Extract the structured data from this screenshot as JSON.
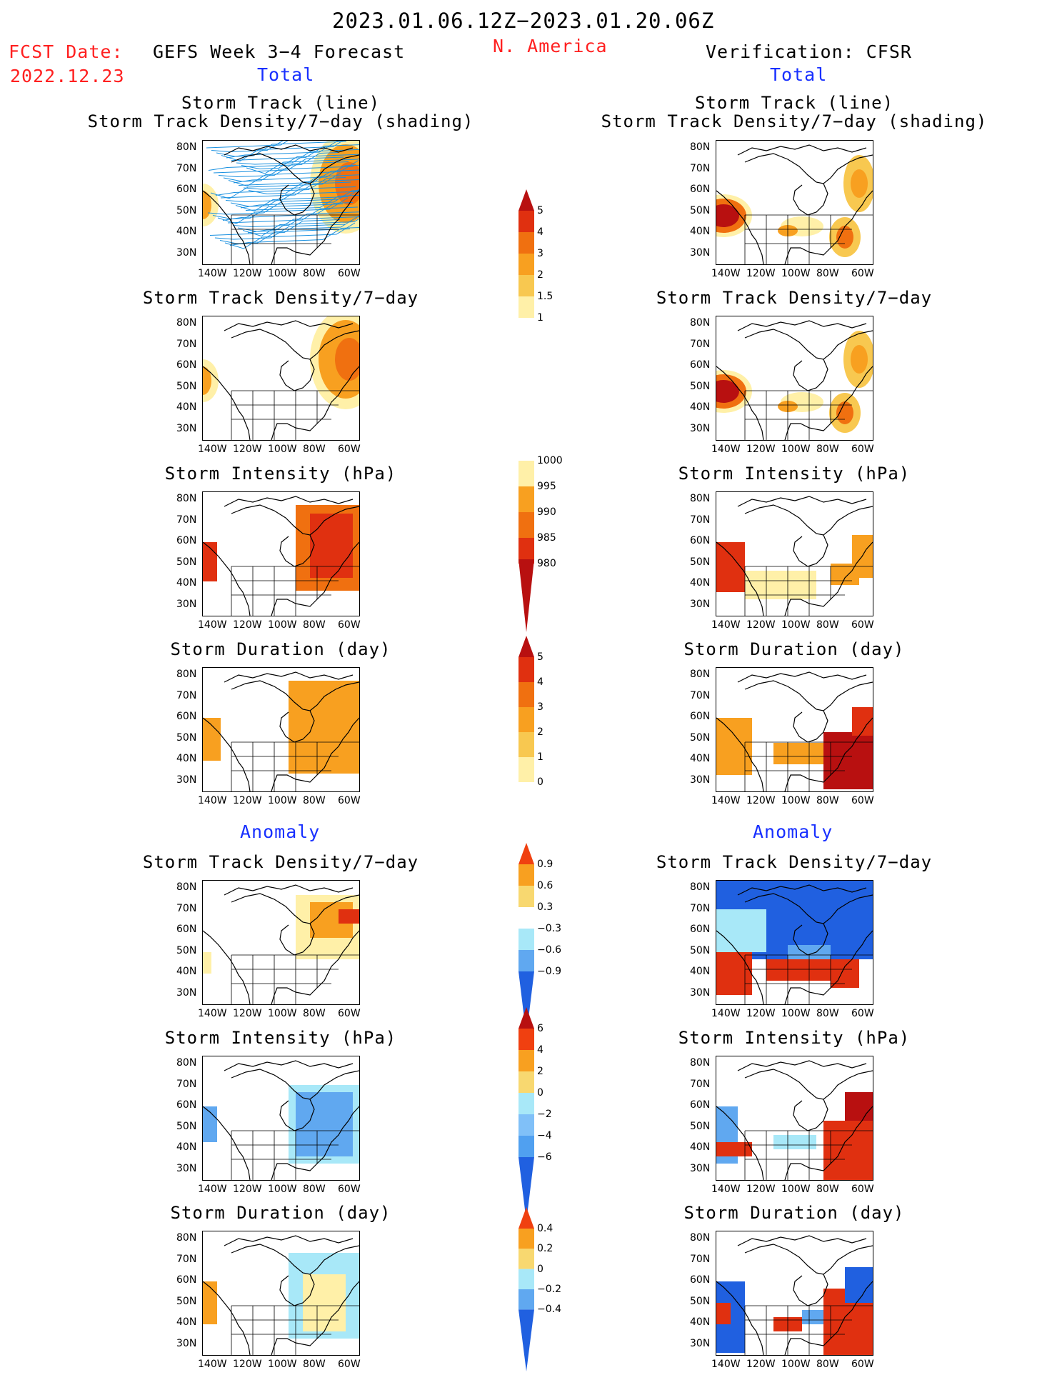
{
  "header": {
    "period": "2023.01.06.12Z−2023.01.20.06Z",
    "fcst_label": "FCST Date:",
    "fcst_date": "2022.12.23",
    "region": "N. America",
    "left_title": "GEFS Week 3−4 Forecast",
    "right_title": "Verification: CFSR",
    "total_label": "Total",
    "anomaly_label": "Anomaly"
  },
  "panel_titles": {
    "track_line": "Storm Track (line)",
    "track_density_shading": "Storm Track Density/7−day (shading)",
    "track_density": "Storm Track Density/7−day",
    "intensity": "Storm Intensity (hPa)",
    "duration": "Storm Duration (day)"
  },
  "map_axes": {
    "lat_ticks": [
      "80N",
      "70N",
      "60N",
      "50N",
      "40N",
      "30N"
    ],
    "lon_ticks": [
      "140W",
      "120W",
      "100W",
      "80W",
      "60W"
    ]
  },
  "colorbars": [
    {
      "id": "density_total",
      "labels": [
        "5",
        "4",
        "3",
        "2",
        "1.5",
        "1"
      ],
      "colors": [
        "#b81010",
        "#e03010",
        "#f07010",
        "#f8a020",
        "#f8c850",
        "#fff0a8"
      ],
      "ends": "top"
    },
    {
      "id": "intensity_total",
      "labels": [
        "1000",
        "995",
        "990",
        "985",
        "980"
      ],
      "colors": [
        "#fff0a8",
        "#f8a020",
        "#f07010",
        "#e03010",
        "#b81010"
      ],
      "ends": "bottom"
    },
    {
      "id": "duration_total",
      "labels": [
        "5",
        "4",
        "3",
        "2",
        "1",
        "0"
      ],
      "colors": [
        "#b81010",
        "#e03010",
        "#f07010",
        "#f8a020",
        "#f8c850",
        "#fff0a8"
      ],
      "ends": "top"
    },
    {
      "id": "density_anom",
      "labels": [
        "0.9",
        "0.6",
        "0.3",
        "−0.3",
        "−0.6",
        "−0.9"
      ],
      "colors": [
        "#f04010",
        "#f8a020",
        "#f8d870",
        "#ffffff",
        "#a8e8f8",
        "#60a8f0",
        "#2060e0"
      ],
      "ends": "both"
    },
    {
      "id": "intensity_anom",
      "labels": [
        "6",
        "4",
        "2",
        "0",
        "−2",
        "−4",
        "−6"
      ],
      "colors": [
        "#b81010",
        "#f04010",
        "#f8a020",
        "#f8d870",
        "#a8e8f8",
        "#80c0f8",
        "#50a0f0",
        "#2060e0"
      ],
      "ends": "both"
    },
    {
      "id": "duration_anom",
      "labels": [
        "0.4",
        "0.2",
        "0",
        "−0.2",
        "−0.4"
      ],
      "colors": [
        "#f04010",
        "#f8a020",
        "#f8d870",
        "#a8e8f8",
        "#60a8f0",
        "#2060e0"
      ],
      "ends": "both"
    }
  ],
  "colors": {
    "red_text": "#ff2020",
    "blue_text": "#1830ff",
    "track_line": "#1890e0"
  }
}
